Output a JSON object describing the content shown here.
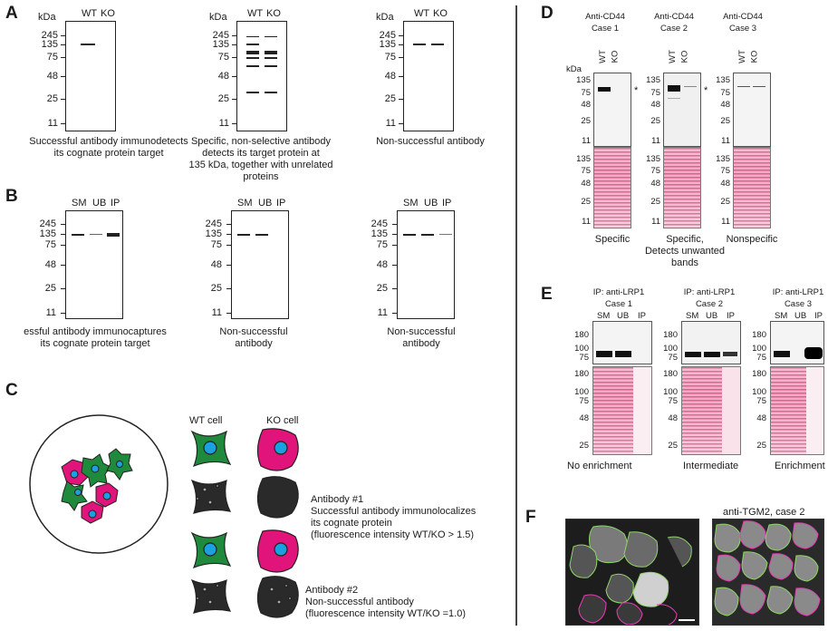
{
  "panel_labels": {
    "A": "A",
    "B": "B",
    "C": "C",
    "D": "D",
    "E": "E",
    "F": "F"
  },
  "panelA": {
    "kda": "kDa",
    "lanes": [
      "WT",
      "KO"
    ],
    "ticks": [
      "245",
      "135",
      "75",
      "48",
      "25",
      "11"
    ],
    "captions": [
      "Successful antibody immunodetects\nits cognate protein target",
      "Specific, non-selective antibody\ndetects its target protein at\n135 kDa, together with unrelated proteins",
      "Non-successful antibody"
    ]
  },
  "panelB": {
    "lanes": [
      "SM",
      "UB",
      "IP"
    ],
    "ticks": [
      "245",
      "135",
      "75",
      "48",
      "25",
      "11"
    ],
    "captions": [
      "essful antibody immunocaptures\nits cognate protein target",
      "Non-successful\nantibody",
      "Non-successful\nantibody"
    ]
  },
  "panelC": {
    "wt_cell": "WT cell",
    "ko_cell": "KO cell",
    "ab1_title": "Antibody #1",
    "ab1_desc": "Successful antibody immunolocalizes\nits cognate protein\n(fluorescence intensity WT/KO > 1.5)",
    "ab2_title": "Antibody #2",
    "ab2_desc": "Non-successful antibody\n(fluorescence intensity WT/KO =1.0)",
    "colors": {
      "wt": "#1f8a3c",
      "ko": "#e0147a",
      "nucleus": "#1aa1e0",
      "dark": "#2a2a2a"
    }
  },
  "panelD": {
    "titles": [
      "Anti-CD44\nCase 1",
      "Anti-CD44\nCase 2",
      "Anti-CD44\nCase 3"
    ],
    "lanes": [
      "WT",
      "KO"
    ],
    "kda": "kDa",
    "ticks_top": [
      "135",
      "75",
      "48",
      "25",
      "11"
    ],
    "ticks_bottom": [
      "135",
      "75",
      "48",
      "25",
      "11"
    ],
    "star": "*",
    "captions": [
      "Specific",
      "Specific,\nDetects unwanted bands",
      "Nonspecific"
    ]
  },
  "panelE": {
    "titles": [
      "IP: anti-LRP1\nCase 1",
      "IP: anti-LRP1\nCase 2",
      "IP: anti-LRP1\nCase 3"
    ],
    "lanes": [
      "SM",
      "UB",
      "IP"
    ],
    "ticks_top": [
      "180",
      "100",
      "75"
    ],
    "ticks_bottom": [
      "180",
      "100",
      "75",
      "48",
      "25"
    ],
    "captions": [
      "No enrichment",
      "Intermediate",
      "Enrichment"
    ]
  },
  "panelF": {
    "title": "anti-TGM2, case 2"
  }
}
